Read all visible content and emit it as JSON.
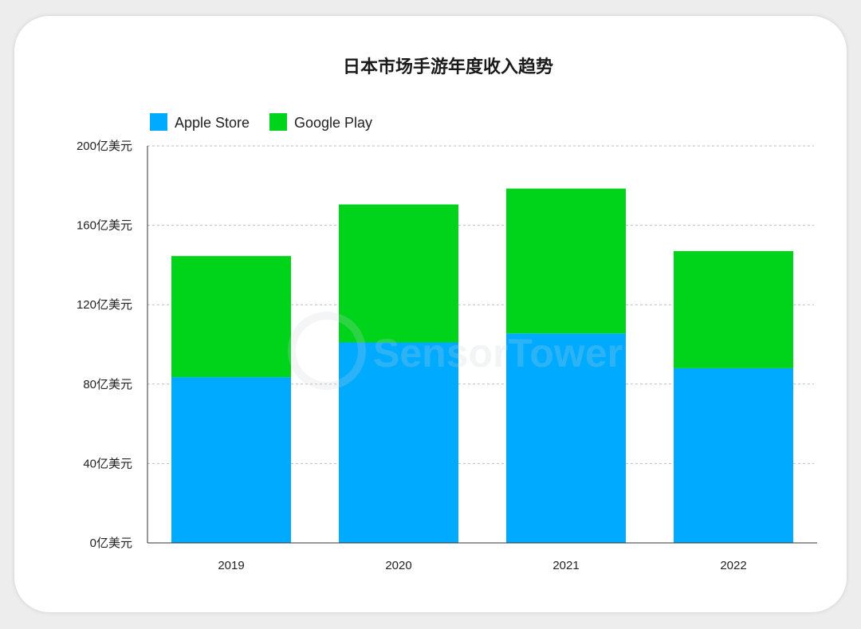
{
  "chart_data": {
    "type": "bar",
    "stacked": true,
    "title": "日本市场手游年度收入趋势",
    "categories": [
      "2019",
      "2020",
      "2021",
      "2022"
    ],
    "series": [
      {
        "name": "Apple Store",
        "color": "#00aaff",
        "values": [
          83.5,
          101,
          105.5,
          88
        ]
      },
      {
        "name": "Google Play",
        "color": "#00d41a",
        "values": [
          61,
          69.5,
          73,
          59
        ]
      }
    ],
    "yticks": [
      0,
      40,
      80,
      120,
      160,
      200
    ],
    "ytick_labels": [
      "0亿美元",
      "40亿美元",
      "80亿美元",
      "120亿美元",
      "160亿美元",
      "200亿美元"
    ],
    "ylim": [
      0,
      200
    ],
    "grid": true,
    "legend": "top-left"
  },
  "watermark": "SensorTower"
}
